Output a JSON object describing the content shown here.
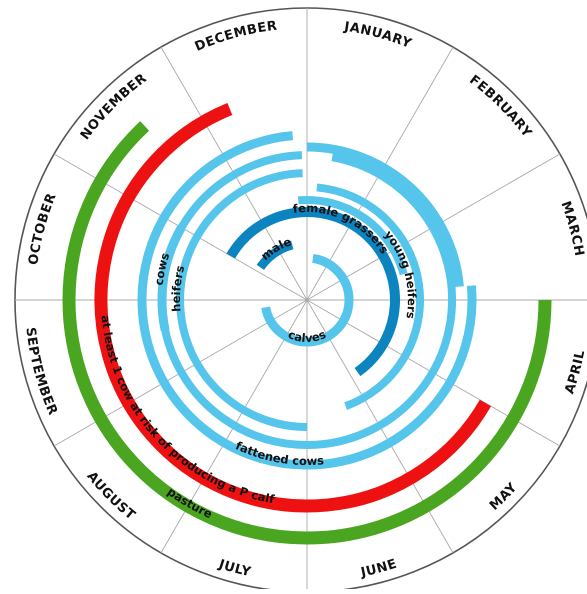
{
  "months": [
    "JANUARY",
    "FEBRUARY",
    "MARCH",
    "APRIL",
    "MAY",
    "JUNE",
    "JULY",
    "AUGUST",
    "SEPTEMBER",
    "OCTOBER",
    "NOVEMBER",
    "DECEMBER"
  ],
  "colors": {
    "pasture": "#4aa520",
    "risk": "#ee1111",
    "light_blue": "#55c5ec",
    "dark_blue": "#0b84bf",
    "ring": "#555555",
    "spoke": "#aaaaaa"
  },
  "labels": {
    "pasture": "pasture",
    "risk": "at least 1 cow at risk of producing a P calf",
    "fattened": "fattened cows",
    "cows": "cows",
    "heifers": "heifers",
    "female_grassers": "female grassers",
    "young_heifers": "young heifers",
    "male": "male",
    "calves": "calves"
  }
}
